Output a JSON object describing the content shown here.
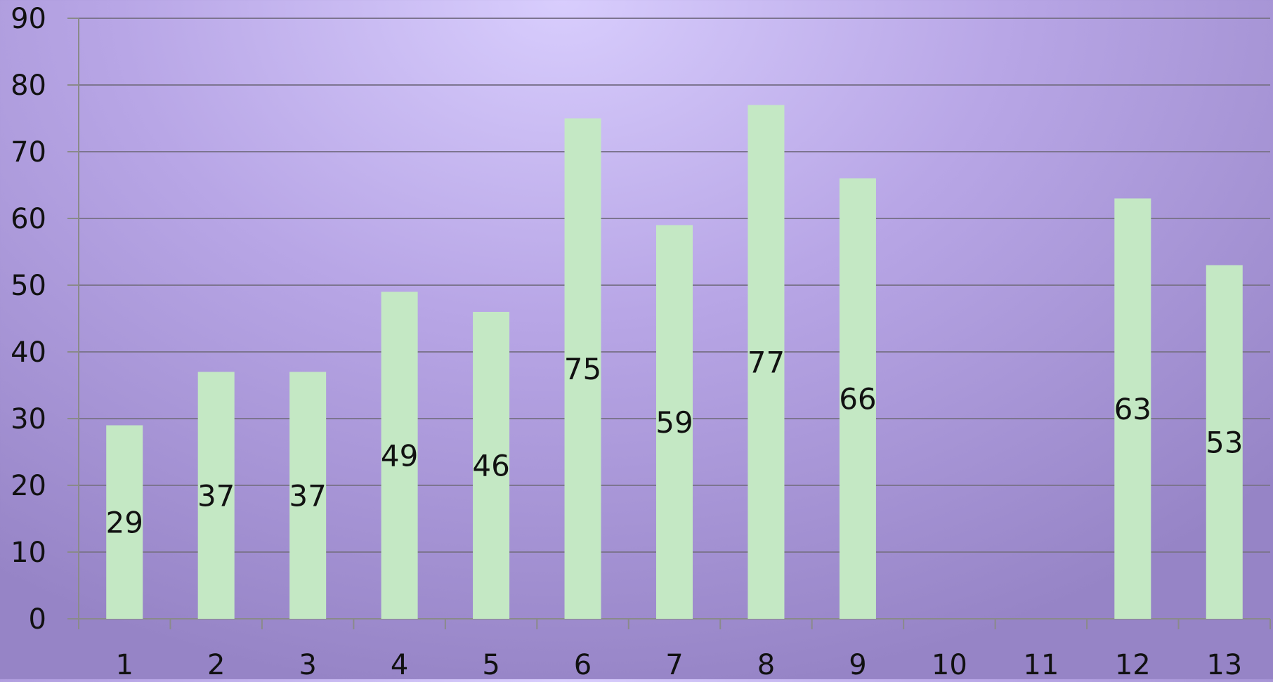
{
  "chart_data": {
    "type": "bar",
    "title": "",
    "xlabel": "",
    "ylabel": "",
    "categories": [
      "1",
      "2",
      "3",
      "4",
      "5",
      "6",
      "7",
      "8",
      "9",
      "10",
      "11",
      "12",
      "13"
    ],
    "values": [
      29,
      37,
      37,
      49,
      46,
      75,
      59,
      77,
      66,
      null,
      null,
      63,
      53
    ],
    "data_labels": [
      "29",
      "37",
      "37",
      "49",
      "46",
      "75",
      "59",
      "77",
      "66",
      "",
      "",
      "63",
      "53"
    ],
    "y_ticks": [
      "0",
      "10",
      "20",
      "30",
      "40",
      "50",
      "60",
      "70",
      "80",
      "90"
    ],
    "ylim": [
      0,
      90
    ],
    "grid": true,
    "legend": "none",
    "colors": {
      "bar": "#c4e8c4",
      "grid": "#7d7590",
      "axis": "#8a8a8a",
      "text": "#111111"
    }
  }
}
